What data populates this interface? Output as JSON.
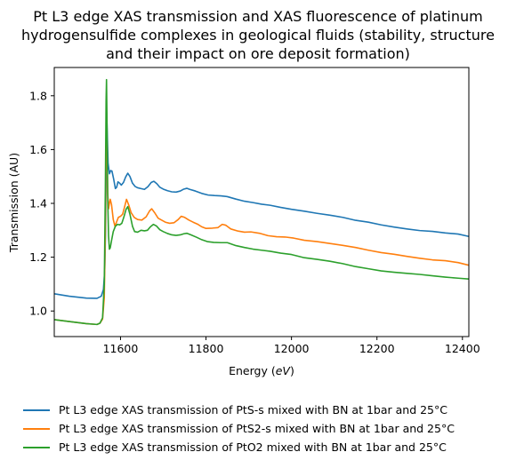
{
  "title_lines": [
    "Pt L3 edge XAS transmission and XAS fluorescence of platinum",
    "hydrogensulfide complexes in geological fluids (stability, structure",
    "and their impact on ore deposit formation)"
  ],
  "chart_data": {
    "type": "line",
    "title": "Pt L3 edge XAS transmission and XAS fluorescence of platinum hydrogensulfide complexes in geological fluids (stability, structure and their impact on ore deposit formation)",
    "xlabel_prefix": "Energy (",
    "xlabel_unit": "eV",
    "xlabel_suffix": ")",
    "ylabel": "Transmission (AU)",
    "xlim": [
      11445,
      12415
    ],
    "ylim": [
      0.905,
      1.905
    ],
    "xticks": [
      11600,
      11800,
      12000,
      12200,
      12400
    ],
    "yticks": [
      1.0,
      1.2,
      1.4,
      1.6,
      1.8
    ],
    "grid": false,
    "legend_position": "below",
    "series": [
      {
        "name": "Pt L3 edge XAS transmission of PtS-s mixed with BN at 1bar and 25°C",
        "color": "#1f77b4",
        "points": [
          [
            11445,
            1.064
          ],
          [
            11480,
            1.055
          ],
          [
            11520,
            1.048
          ],
          [
            11545,
            1.047
          ],
          [
            11555,
            1.055
          ],
          [
            11560,
            1.08
          ],
          [
            11563,
            1.15
          ],
          [
            11565,
            1.3
          ],
          [
            11566.5,
            1.55
          ],
          [
            11567.5,
            1.74
          ],
          [
            11569,
            1.66
          ],
          [
            11571,
            1.55
          ],
          [
            11574,
            1.51
          ],
          [
            11577,
            1.522
          ],
          [
            11580,
            1.52
          ],
          [
            11584,
            1.49
          ],
          [
            11588,
            1.455
          ],
          [
            11591,
            1.46
          ],
          [
            11594,
            1.48
          ],
          [
            11598,
            1.475
          ],
          [
            11602,
            1.468
          ],
          [
            11607,
            1.478
          ],
          [
            11612,
            1.498
          ],
          [
            11617,
            1.512
          ],
          [
            11622,
            1.5
          ],
          [
            11628,
            1.475
          ],
          [
            11634,
            1.463
          ],
          [
            11640,
            1.458
          ],
          [
            11648,
            1.455
          ],
          [
            11656,
            1.452
          ],
          [
            11664,
            1.462
          ],
          [
            11672,
            1.478
          ],
          [
            11678,
            1.482
          ],
          [
            11685,
            1.473
          ],
          [
            11692,
            1.46
          ],
          [
            11700,
            1.453
          ],
          [
            11710,
            1.447
          ],
          [
            11720,
            1.443
          ],
          [
            11730,
            1.442
          ],
          [
            11740,
            1.446
          ],
          [
            11748,
            1.453
          ],
          [
            11755,
            1.456
          ],
          [
            11762,
            1.452
          ],
          [
            11775,
            1.446
          ],
          [
            11790,
            1.437
          ],
          [
            11805,
            1.431
          ],
          [
            11820,
            1.429
          ],
          [
            11835,
            1.428
          ],
          [
            11850,
            1.425
          ],
          [
            11870,
            1.416
          ],
          [
            11890,
            1.408
          ],
          [
            11910,
            1.403
          ],
          [
            11930,
            1.397
          ],
          [
            11950,
            1.393
          ],
          [
            11975,
            1.385
          ],
          [
            12000,
            1.378
          ],
          [
            12030,
            1.371
          ],
          [
            12060,
            1.363
          ],
          [
            12090,
            1.356
          ],
          [
            12120,
            1.348
          ],
          [
            12150,
            1.337
          ],
          [
            12180,
            1.33
          ],
          [
            12210,
            1.32
          ],
          [
            12240,
            1.312
          ],
          [
            12270,
            1.305
          ],
          [
            12300,
            1.299
          ],
          [
            12330,
            1.296
          ],
          [
            12360,
            1.29
          ],
          [
            12390,
            1.286
          ],
          [
            12415,
            1.277
          ]
        ]
      },
      {
        "name": "Pt L3 edge XAS transmission of PtS2-s mixed with BN at 1bar and 25°C",
        "color": "#ff7f0e",
        "points": [
          [
            11445,
            0.968
          ],
          [
            11480,
            0.961
          ],
          [
            11520,
            0.953
          ],
          [
            11545,
            0.95
          ],
          [
            11552,
            0.955
          ],
          [
            11558,
            0.97
          ],
          [
            11562,
            1.05
          ],
          [
            11564.5,
            1.3
          ],
          [
            11566,
            1.58
          ],
          [
            11567.2,
            1.72
          ],
          [
            11568.5,
            1.62
          ],
          [
            11570,
            1.44
          ],
          [
            11572,
            1.38
          ],
          [
            11574,
            1.4
          ],
          [
            11576,
            1.415
          ],
          [
            11579,
            1.395
          ],
          [
            11583,
            1.34
          ],
          [
            11587,
            1.315
          ],
          [
            11591,
            1.332
          ],
          [
            11595,
            1.348
          ],
          [
            11600,
            1.352
          ],
          [
            11605,
            1.36
          ],
          [
            11610,
            1.39
          ],
          [
            11614,
            1.415
          ],
          [
            11619,
            1.395
          ],
          [
            11625,
            1.365
          ],
          [
            11632,
            1.348
          ],
          [
            11640,
            1.34
          ],
          [
            11650,
            1.338
          ],
          [
            11660,
            1.35
          ],
          [
            11668,
            1.372
          ],
          [
            11673,
            1.38
          ],
          [
            11680,
            1.365
          ],
          [
            11688,
            1.345
          ],
          [
            11696,
            1.338
          ],
          [
            11705,
            1.33
          ],
          [
            11715,
            1.326
          ],
          [
            11725,
            1.328
          ],
          [
            11735,
            1.34
          ],
          [
            11742,
            1.352
          ],
          [
            11750,
            1.348
          ],
          [
            11760,
            1.338
          ],
          [
            11770,
            1.33
          ],
          [
            11780,
            1.323
          ],
          [
            11790,
            1.313
          ],
          [
            11800,
            1.307
          ],
          [
            11815,
            1.308
          ],
          [
            11828,
            1.31
          ],
          [
            11838,
            1.322
          ],
          [
            11846,
            1.319
          ],
          [
            11858,
            1.305
          ],
          [
            11875,
            1.297
          ],
          [
            11890,
            1.293
          ],
          [
            11905,
            1.294
          ],
          [
            11925,
            1.289
          ],
          [
            11945,
            1.28
          ],
          [
            11965,
            1.276
          ],
          [
            11985,
            1.275
          ],
          [
            12005,
            1.271
          ],
          [
            12030,
            1.263
          ],
          [
            12060,
            1.258
          ],
          [
            12090,
            1.251
          ],
          [
            12120,
            1.244
          ],
          [
            12150,
            1.236
          ],
          [
            12180,
            1.226
          ],
          [
            12210,
            1.217
          ],
          [
            12240,
            1.211
          ],
          [
            12270,
            1.203
          ],
          [
            12300,
            1.196
          ],
          [
            12330,
            1.19
          ],
          [
            12360,
            1.187
          ],
          [
            12390,
            1.18
          ],
          [
            12415,
            1.17
          ]
        ]
      },
      {
        "name": "Pt L3 edge XAS transmission of PtO2 mixed with BN at 1bar and 25°C",
        "color": "#2ca02c",
        "points": [
          [
            11445,
            0.968
          ],
          [
            11480,
            0.961
          ],
          [
            11520,
            0.953
          ],
          [
            11545,
            0.95
          ],
          [
            11552,
            0.955
          ],
          [
            11558,
            0.975
          ],
          [
            11562,
            1.1
          ],
          [
            11564.5,
            1.45
          ],
          [
            11566.2,
            1.78
          ],
          [
            11567.2,
            1.86
          ],
          [
            11568.3,
            1.72
          ],
          [
            11570,
            1.42
          ],
          [
            11572,
            1.28
          ],
          [
            11574,
            1.23
          ],
          [
            11576,
            1.235
          ],
          [
            11579,
            1.262
          ],
          [
            11583,
            1.295
          ],
          [
            11588,
            1.315
          ],
          [
            11593,
            1.322
          ],
          [
            11598,
            1.32
          ],
          [
            11603,
            1.326
          ],
          [
            11608,
            1.35
          ],
          [
            11613,
            1.378
          ],
          [
            11617,
            1.388
          ],
          [
            11622,
            1.36
          ],
          [
            11628,
            1.315
          ],
          [
            11633,
            1.295
          ],
          [
            11640,
            1.293
          ],
          [
            11648,
            1.3
          ],
          [
            11656,
            1.298
          ],
          [
            11663,
            1.3
          ],
          [
            11670,
            1.313
          ],
          [
            11677,
            1.322
          ],
          [
            11684,
            1.316
          ],
          [
            11692,
            1.302
          ],
          [
            11700,
            1.295
          ],
          [
            11710,
            1.288
          ],
          [
            11720,
            1.283
          ],
          [
            11730,
            1.281
          ],
          [
            11740,
            1.283
          ],
          [
            11748,
            1.287
          ],
          [
            11755,
            1.289
          ],
          [
            11765,
            1.283
          ],
          [
            11778,
            1.274
          ],
          [
            11790,
            1.265
          ],
          [
            11803,
            1.258
          ],
          [
            11818,
            1.255
          ],
          [
            11835,
            1.254
          ],
          [
            11850,
            1.254
          ],
          [
            11870,
            1.243
          ],
          [
            11890,
            1.236
          ],
          [
            11910,
            1.23
          ],
          [
            11930,
            1.226
          ],
          [
            11950,
            1.222
          ],
          [
            11975,
            1.215
          ],
          [
            12000,
            1.21
          ],
          [
            12030,
            1.198
          ],
          [
            12060,
            1.192
          ],
          [
            12090,
            1.185
          ],
          [
            12120,
            1.176
          ],
          [
            12150,
            1.165
          ],
          [
            12180,
            1.157
          ],
          [
            12210,
            1.149
          ],
          [
            12240,
            1.144
          ],
          [
            12270,
            1.14
          ],
          [
            12300,
            1.136
          ],
          [
            12330,
            1.131
          ],
          [
            12360,
            1.126
          ],
          [
            12390,
            1.122
          ],
          [
            12415,
            1.119
          ]
        ]
      }
    ]
  }
}
